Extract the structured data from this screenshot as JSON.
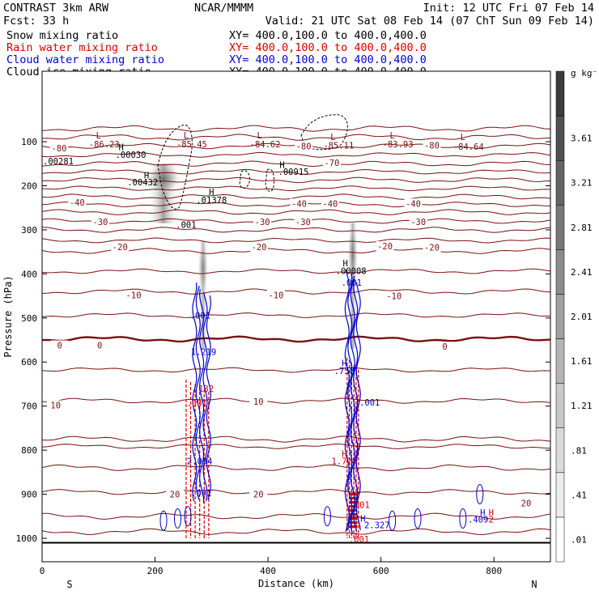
{
  "header": {
    "left_line1": "CONTRAST  3km ARW",
    "center_line1": "NCAR/MMMM",
    "right_line1": "Init: 12 UTC Fri 07 Feb 14",
    "left_line2": "Fcst:   33 h",
    "right_line2": "Valid: 21 UTC Sat 08 Feb 14 (07 ChT Sun 09 Feb 14)"
  },
  "fields": [
    {
      "name": "Snow mixing ratio",
      "xy": "XY= 400.0,100.0 to 400.0,400.0",
      "color": "#000000"
    },
    {
      "name": "Rain water mixing ratio",
      "xy": "XY= 400.0,100.0 to 400.0,400.0",
      "color": "#dd0000"
    },
    {
      "name": "Cloud water mixing ratio",
      "xy": "XY= 400.0,100.0 to 400.0,400.0",
      "color": "#0000cc"
    },
    {
      "name": "Cloud ice mixing ratio",
      "xy": "XY= 400.0,100.0 to 400.0,400.0",
      "color": "#000000"
    }
  ],
  "chart_data": {
    "type": "contour-cross-section",
    "xlabel": "Distance (km)",
    "ylabel": "Pressure (hPa)",
    "x_ticks": [
      0,
      200,
      400,
      600,
      800
    ],
    "xlim": [
      0,
      900
    ],
    "y_ticks": [
      100,
      200,
      300,
      400,
      500,
      600,
      700,
      800,
      900,
      1000
    ],
    "ylim": [
      50,
      1045
    ],
    "x_end_labels": {
      "left": "S",
      "right": "N"
    },
    "colorbar": {
      "unit": "g kg⁻¹",
      "levels": [
        ".01",
        ".41",
        ".81",
        "1.21",
        "1.61",
        "2.01",
        "2.41",
        "2.81",
        "3.21",
        "3.61"
      ],
      "colors": [
        "#ffffff",
        "#ececec",
        "#dadada",
        "#c8c8c8",
        "#b4b4b4",
        "#a0a0a0",
        "#8c8c8c",
        "#787878",
        "#646464",
        "#505050",
        "#3c3c3c"
      ]
    },
    "temperature_isotherms": {
      "color": "#7a1010",
      "levels_c": [
        -80,
        -70,
        -60,
        -50,
        -40,
        -30,
        -20,
        -10,
        0,
        10,
        20
      ],
      "level_pressures": [
        {
          "t": -80,
          "p": 110
        },
        {
          "t": -70,
          "p": 150
        },
        {
          "t": -60,
          "p": 187
        },
        {
          "t": -50,
          "p": 225
        },
        {
          "t": -40,
          "p": 260
        },
        {
          "t": -30,
          "p": 300
        },
        {
          "t": -20,
          "p": 348
        },
        {
          "t": -10,
          "p": 440
        },
        {
          "t": 0,
          "p": 548
        },
        {
          "t": 10,
          "p": 688
        },
        {
          "t": 20,
          "p": 895
        }
      ],
      "labels": [
        {
          "text": "-80",
          "x": 30,
          "p": 115
        },
        {
          "text": "-80",
          "x": 463,
          "p": 110
        },
        {
          "text": "-80",
          "x": 690,
          "p": 108
        },
        {
          "text": "-70",
          "x": 513,
          "p": 148
        },
        {
          "text": "-40",
          "x": 62,
          "p": 238
        },
        {
          "text": "-40",
          "x": 455,
          "p": 240
        },
        {
          "text": "-40",
          "x": 510,
          "p": 240
        },
        {
          "text": "-40",
          "x": 657,
          "p": 240
        },
        {
          "text": "-30",
          "x": 103,
          "p": 282
        },
        {
          "text": "-30",
          "x": 390,
          "p": 282
        },
        {
          "text": "-30",
          "x": 462,
          "p": 282
        },
        {
          "text": "-30",
          "x": 666,
          "p": 282
        },
        {
          "text": "-20",
          "x": 138,
          "p": 339
        },
        {
          "text": "-20",
          "x": 384,
          "p": 339
        },
        {
          "text": "-20",
          "x": 607,
          "p": 337
        },
        {
          "text": "-20",
          "x": 690,
          "p": 340
        },
        {
          "text": "-10",
          "x": 162,
          "p": 448
        },
        {
          "text": "-10",
          "x": 414,
          "p": 448
        },
        {
          "text": "-10",
          "x": 623,
          "p": 450
        },
        {
          "text": "0",
          "x": 31,
          "p": 562
        },
        {
          "text": "0",
          "x": 102,
          "p": 562
        },
        {
          "text": "0",
          "x": 713,
          "p": 565
        },
        {
          "text": "10",
          "x": 24,
          "p": 698
        },
        {
          "text": "10",
          "x": 383,
          "p": 690
        },
        {
          "text": "20",
          "x": 235,
          "p": 900
        },
        {
          "text": "20",
          "x": 383,
          "p": 900
        },
        {
          "text": "20",
          "x": 857,
          "p": 920
        }
      ]
    },
    "extrema_labels": [
      {
        "text": "-86.23",
        "x": 110,
        "p": 105,
        "color": "#7a1010"
      },
      {
        "text": "-85.45",
        "x": 265,
        "p": 105,
        "color": "#7a1010"
      },
      {
        "text": "-84.62",
        "x": 395,
        "p": 105,
        "color": "#7a1010"
      },
      {
        "text": "-85.11",
        "x": 525,
        "p": 108,
        "color": "#7a1010"
      },
      {
        "text": "-83.93",
        "x": 630,
        "p": 105,
        "color": "#7a1010"
      },
      {
        "text": "-84.64",
        "x": 755,
        "p": 111,
        "color": "#7a1010"
      },
      {
        "text": ".00030",
        "x": 157,
        "p": 129,
        "color": "#000000"
      },
      {
        "text": ".00281",
        "x": 0,
        "p": 144,
        "color": "#000000"
      },
      {
        "text": ".00915",
        "x": 445,
        "p": 168,
        "color": "#000000"
      },
      {
        "text": ".00432",
        "x": 178,
        "p": 192,
        "color": "#000000"
      },
      {
        "text": ".01378",
        "x": 300,
        "p": 232,
        "color": "#000000"
      },
      {
        "text": ".001",
        "x": 255,
        "p": 288,
        "color": "#000000"
      },
      {
        "text": ".00008",
        "x": 547,
        "p": 393,
        "color": "#000000"
      },
      {
        "text": ".001",
        "x": 548,
        "p": 420,
        "color": "#0000cc"
      },
      {
        "text": ".001",
        "x": 280,
        "p": 494,
        "color": "#0000cc"
      },
      {
        "text": "1.219",
        "x": 286,
        "p": 577,
        "color": "#0000cc"
      },
      {
        "text": ".758",
        "x": 535,
        "p": 620,
        "color": "#0000cc"
      },
      {
        "text": ".132",
        "x": 286,
        "p": 660,
        "color": "#dd0000"
      },
      {
        "text": ".001",
        "x": 274,
        "p": 693,
        "color": "#dd0000"
      },
      {
        "text": ".001",
        "x": 580,
        "p": 691,
        "color": "#0000cc"
      },
      {
        "text": "2.094",
        "x": 279,
        "p": 825,
        "color": "#0000cc"
      },
      {
        "text": "1.728",
        "x": 535,
        "p": 825,
        "color": "#dd0000"
      },
      {
        "text": ".001",
        "x": 282,
        "p": 897,
        "color": "#0000cc"
      },
      {
        "text": ".001",
        "x": 562,
        "p": 924,
        "color": "#dd0000"
      },
      {
        "text": "2.327",
        "x": 593,
        "p": 970,
        "color": "#0000cc"
      },
      {
        "text": ".409",
        "x": 772,
        "p": 957,
        "color": "#0000cc"
      },
      {
        "text": "2",
        "x": 795,
        "p": 957,
        "color": "#dd0000"
      },
      {
        "text": ".001",
        "x": 561,
        "p": 1002,
        "color": "#dd0000"
      }
    ],
    "high_low_markers": [
      {
        "text": "L",
        "x": 100,
        "p": 85,
        "color": "#7a1010"
      },
      {
        "text": "L",
        "x": 255,
        "p": 85,
        "color": "#7a1010"
      },
      {
        "text": "L",
        "x": 385,
        "p": 85,
        "color": "#7a1010"
      },
      {
        "text": "L",
        "x": 515,
        "p": 89,
        "color": "#7a1010"
      },
      {
        "text": "L",
        "x": 620,
        "p": 85,
        "color": "#7a1010"
      },
      {
        "text": "L",
        "x": 745,
        "p": 89,
        "color": "#7a1010"
      },
      {
        "text": "H",
        "x": 140,
        "p": 112,
        "color": "#000000"
      },
      {
        "text": "H",
        "x": 425,
        "p": 152,
        "color": "#000000"
      },
      {
        "text": "H",
        "x": 185,
        "p": 176,
        "color": "#000000"
      },
      {
        "text": "H",
        "x": 300,
        "p": 214,
        "color": "#000000"
      },
      {
        "text": "H",
        "x": 537,
        "p": 375,
        "color": "#000000"
      },
      {
        "text": "H",
        "x": 535,
        "p": 602,
        "color": "#0000cc"
      },
      {
        "text": "H",
        "x": 535,
        "p": 808,
        "color": "#dd0000"
      },
      {
        "text": "H",
        "x": 568,
        "p": 955,
        "color": "#0000cc"
      },
      {
        "text": "H",
        "x": 780,
        "p": 941,
        "color": "#0000cc"
      },
      {
        "text": "H",
        "x": 795,
        "p": 941,
        "color": "#dd0000"
      }
    ],
    "snow_shading": [
      {
        "x": 215,
        "p_top": 150,
        "p_bottom": 285,
        "width": 40,
        "peak": 0.8
      },
      {
        "x": 285,
        "p_top": 325,
        "p_bottom": 570,
        "width": 12,
        "peak": 0.65
      },
      {
        "x": 550,
        "p_top": 285,
        "p_bottom": 570,
        "width": 12,
        "peak": 0.7
      }
    ],
    "rain_columns": [
      {
        "x_start": 255,
        "x_end": 295,
        "p_top": 640,
        "p_bottom": 1000
      },
      {
        "x_start": 540,
        "x_end": 560,
        "p_top": 590,
        "p_bottom": 1000
      }
    ],
    "cloud_water_columns": [
      {
        "x_start": 270,
        "x_end": 295,
        "p_top": 420,
        "p_bottom": 920
      },
      {
        "x_start": 540,
        "x_end": 560,
        "p_top": 390,
        "p_bottom": 990
      }
    ]
  }
}
